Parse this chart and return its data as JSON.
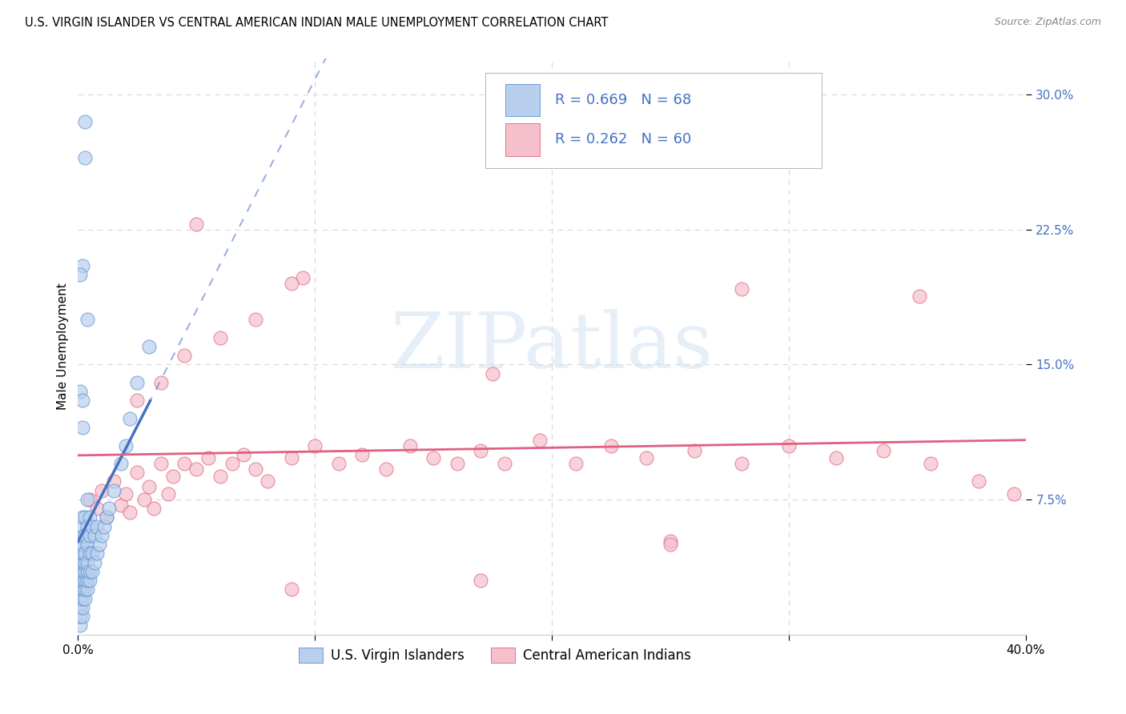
{
  "title": "U.S. VIRGIN ISLANDER VS CENTRAL AMERICAN INDIAN MALE UNEMPLOYMENT CORRELATION CHART",
  "source": "Source: ZipAtlas.com",
  "ylabel": "Male Unemployment",
  "xlim": [
    0.0,
    0.4
  ],
  "ylim": [
    0.0,
    0.32
  ],
  "ytick_values": [
    0.075,
    0.15,
    0.225,
    0.3
  ],
  "ytick_labels": [
    "7.5%",
    "15.0%",
    "22.5%",
    "30.0%"
  ],
  "blue_r": 0.669,
  "blue_n": 68,
  "pink_r": 0.262,
  "pink_n": 60,
  "legend_blue_label": "U.S. Virgin Islanders",
  "legend_pink_label": "Central American Indians",
  "blue_fill_color": "#b8d0ed",
  "blue_edge_color": "#5b8fd4",
  "pink_fill_color": "#f5c0cc",
  "pink_edge_color": "#e06080",
  "blue_line_color": "#4472c4",
  "pink_line_color": "#e06080",
  "r_text_color": "#4472c4",
  "grid_color": "#d8d8d8",
  "watermark_text": "ZIPatlas",
  "watermark_color": "#c8ddf0",
  "background_color": "#ffffff",
  "title_fontsize": 10.5,
  "source_fontsize": 9,
  "axis_label_fontsize": 11,
  "tick_fontsize": 11,
  "legend_fontsize": 12,
  "blue_scatter_x": [
    0.001,
    0.001,
    0.001,
    0.001,
    0.001,
    0.001,
    0.001,
    0.001,
    0.001,
    0.001,
    0.002,
    0.002,
    0.002,
    0.002,
    0.002,
    0.002,
    0.002,
    0.002,
    0.002,
    0.002,
    0.002,
    0.002,
    0.003,
    0.003,
    0.003,
    0.003,
    0.003,
    0.003,
    0.003,
    0.003,
    0.004,
    0.004,
    0.004,
    0.004,
    0.004,
    0.004,
    0.004,
    0.005,
    0.005,
    0.005,
    0.005,
    0.005,
    0.006,
    0.006,
    0.006,
    0.007,
    0.007,
    0.008,
    0.008,
    0.009,
    0.01,
    0.011,
    0.012,
    0.013,
    0.015,
    0.018,
    0.02,
    0.022,
    0.025,
    0.03,
    0.002,
    0.003,
    0.003,
    0.004,
    0.001,
    0.001,
    0.002,
    0.002
  ],
  "blue_scatter_y": [
    0.005,
    0.01,
    0.015,
    0.02,
    0.025,
    0.03,
    0.035,
    0.04,
    0.045,
    0.05,
    0.01,
    0.015,
    0.02,
    0.025,
    0.03,
    0.035,
    0.04,
    0.045,
    0.05,
    0.055,
    0.06,
    0.065,
    0.02,
    0.025,
    0.03,
    0.035,
    0.04,
    0.045,
    0.055,
    0.065,
    0.025,
    0.03,
    0.035,
    0.04,
    0.05,
    0.06,
    0.075,
    0.03,
    0.035,
    0.045,
    0.055,
    0.065,
    0.035,
    0.045,
    0.06,
    0.04,
    0.055,
    0.045,
    0.06,
    0.05,
    0.055,
    0.06,
    0.065,
    0.07,
    0.08,
    0.095,
    0.105,
    0.12,
    0.14,
    0.16,
    0.205,
    0.265,
    0.285,
    0.175,
    0.2,
    0.135,
    0.13,
    0.115
  ],
  "pink_scatter_x": [
    0.005,
    0.008,
    0.01,
    0.012,
    0.015,
    0.018,
    0.02,
    0.022,
    0.025,
    0.028,
    0.03,
    0.032,
    0.035,
    0.038,
    0.04,
    0.045,
    0.05,
    0.055,
    0.06,
    0.065,
    0.07,
    0.075,
    0.08,
    0.09,
    0.1,
    0.11,
    0.12,
    0.13,
    0.14,
    0.15,
    0.16,
    0.17,
    0.18,
    0.195,
    0.21,
    0.225,
    0.24,
    0.26,
    0.28,
    0.3,
    0.32,
    0.34,
    0.36,
    0.38,
    0.395,
    0.025,
    0.035,
    0.045,
    0.06,
    0.075,
    0.095,
    0.28,
    0.355,
    0.175,
    0.09,
    0.25,
    0.05,
    0.09,
    0.17,
    0.25
  ],
  "pink_scatter_y": [
    0.075,
    0.07,
    0.08,
    0.065,
    0.085,
    0.072,
    0.078,
    0.068,
    0.09,
    0.075,
    0.082,
    0.07,
    0.095,
    0.078,
    0.088,
    0.095,
    0.092,
    0.098,
    0.088,
    0.095,
    0.1,
    0.092,
    0.085,
    0.098,
    0.105,
    0.095,
    0.1,
    0.092,
    0.105,
    0.098,
    0.095,
    0.102,
    0.095,
    0.108,
    0.095,
    0.105,
    0.098,
    0.102,
    0.095,
    0.105,
    0.098,
    0.102,
    0.095,
    0.085,
    0.078,
    0.13,
    0.14,
    0.155,
    0.165,
    0.175,
    0.198,
    0.192,
    0.188,
    0.145,
    0.025,
    0.052,
    0.228,
    0.195,
    0.03,
    0.05
  ]
}
